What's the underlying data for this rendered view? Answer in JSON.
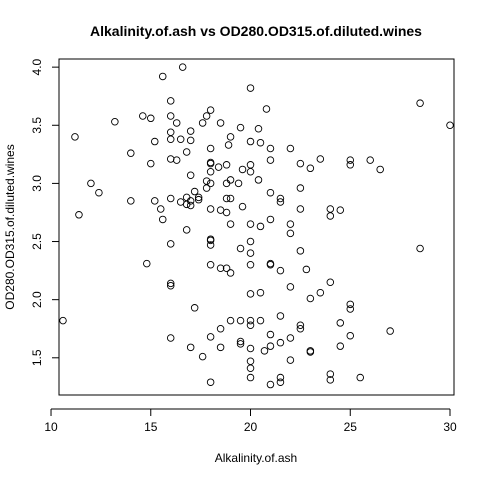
{
  "chart_data": {
    "type": "scatter",
    "title": "Alkalinity.of.ash vs OD280.OD315.of.diluted.wines",
    "xlabel": "Alkalinity.of.ash",
    "ylabel": "OD280.OD315.of.diluted.wines",
    "xlim": [
      10.4,
      30.2
    ],
    "ylim": [
      1.18,
      4.07
    ],
    "xticks": [
      10,
      15,
      20,
      25,
      30
    ],
    "yticks": [
      1.5,
      2.0,
      2.5,
      3.0,
      3.5,
      4.0
    ],
    "xtick_labels": [
      "10",
      "15",
      "20",
      "25",
      "30"
    ],
    "ytick_labels": [
      "1.5",
      "2.0",
      "2.5",
      "3.0",
      "3.5",
      "4.0"
    ],
    "grid": false,
    "points": [
      [
        10.6,
        1.82
      ],
      [
        11.2,
        3.4
      ],
      [
        11.4,
        2.73
      ],
      [
        12.0,
        3.0
      ],
      [
        12.4,
        2.92
      ],
      [
        13.2,
        3.53
      ],
      [
        14.0,
        3.26
      ],
      [
        14.0,
        2.85
      ],
      [
        14.6,
        3.58
      ],
      [
        14.8,
        2.31
      ],
      [
        15.0,
        3.56
      ],
      [
        15.0,
        3.17
      ],
      [
        15.2,
        3.36
      ],
      [
        15.2,
        2.85
      ],
      [
        15.5,
        2.78
      ],
      [
        15.6,
        3.92
      ],
      [
        15.6,
        2.69
      ],
      [
        16.0,
        3.71
      ],
      [
        16.0,
        3.58
      ],
      [
        16.0,
        3.44
      ],
      [
        16.0,
        3.38
      ],
      [
        16.0,
        3.21
      ],
      [
        16.0,
        2.87
      ],
      [
        16.0,
        2.48
      ],
      [
        16.0,
        2.14
      ],
      [
        16.0,
        2.12
      ],
      [
        16.0,
        1.67
      ],
      [
        16.3,
        3.52
      ],
      [
        16.3,
        3.2
      ],
      [
        16.5,
        3.38
      ],
      [
        16.5,
        2.84
      ],
      [
        16.6,
        4.0
      ],
      [
        16.8,
        3.27
      ],
      [
        16.8,
        2.82
      ],
      [
        16.8,
        2.88
      ],
      [
        17.0,
        3.45
      ],
      [
        17.0,
        3.37
      ],
      [
        17.0,
        3.07
      ],
      [
        17.0,
        2.85
      ],
      [
        17.0,
        2.81
      ],
      [
        16.8,
        2.6
      ],
      [
        17.0,
        1.59
      ],
      [
        17.2,
        2.93
      ],
      [
        17.2,
        1.93
      ],
      [
        17.4,
        2.88
      ],
      [
        17.4,
        2.86
      ],
      [
        17.6,
        3.52
      ],
      [
        17.6,
        1.51
      ],
      [
        17.8,
        3.02
      ],
      [
        17.8,
        2.96
      ],
      [
        17.8,
        3.58
      ],
      [
        18.0,
        3.63
      ],
      [
        18.0,
        3.3
      ],
      [
        18.0,
        3.18
      ],
      [
        18.0,
        3.17
      ],
      [
        18.0,
        3.1
      ],
      [
        18.0,
        3.0
      ],
      [
        18.0,
        2.78
      ],
      [
        18.0,
        2.52
      ],
      [
        18.0,
        2.51
      ],
      [
        18.0,
        2.47
      ],
      [
        18.0,
        2.3
      ],
      [
        18.0,
        1.68
      ],
      [
        18.0,
        1.29
      ],
      [
        18.4,
        3.14
      ],
      [
        18.5,
        3.52
      ],
      [
        18.5,
        2.77
      ],
      [
        18.5,
        2.27
      ],
      [
        18.5,
        1.75
      ],
      [
        18.5,
        1.59
      ],
      [
        18.8,
        3.16
      ],
      [
        18.8,
        3.0
      ],
      [
        18.8,
        2.87
      ],
      [
        18.8,
        2.75
      ],
      [
        18.8,
        2.27
      ],
      [
        18.9,
        3.33
      ],
      [
        19.0,
        3.4
      ],
      [
        19.0,
        3.03
      ],
      [
        19.0,
        2.87
      ],
      [
        19.0,
        2.65
      ],
      [
        19.0,
        2.23
      ],
      [
        19.0,
        1.82
      ],
      [
        19.4,
        3.0
      ],
      [
        19.5,
        3.48
      ],
      [
        19.5,
        2.44
      ],
      [
        19.5,
        1.82
      ],
      [
        19.5,
        1.64
      ],
      [
        19.5,
        1.62
      ],
      [
        19.6,
        3.12
      ],
      [
        19.6,
        2.8
      ],
      [
        20.0,
        3.82
      ],
      [
        20.0,
        3.36
      ],
      [
        20.0,
        3.16
      ],
      [
        20.0,
        3.1
      ],
      [
        20.0,
        2.65
      ],
      [
        20.0,
        2.5
      ],
      [
        20.0,
        2.4
      ],
      [
        20.0,
        2.3
      ],
      [
        20.0,
        2.05
      ],
      [
        20.0,
        1.82
      ],
      [
        20.0,
        1.78
      ],
      [
        20.0,
        1.58
      ],
      [
        20.0,
        1.47
      ],
      [
        20.0,
        1.41
      ],
      [
        20.0,
        1.33
      ],
      [
        20.4,
        3.47
      ],
      [
        20.4,
        3.03
      ],
      [
        20.5,
        3.35
      ],
      [
        20.5,
        2.63
      ],
      [
        20.5,
        2.06
      ],
      [
        20.5,
        1.82
      ],
      [
        20.7,
        1.56
      ],
      [
        20.8,
        3.64
      ],
      [
        21.0,
        3.3
      ],
      [
        21.0,
        3.2
      ],
      [
        21.0,
        2.92
      ],
      [
        21.0,
        2.69
      ],
      [
        21.0,
        2.31
      ],
      [
        21.0,
        2.3
      ],
      [
        21.0,
        1.7
      ],
      [
        21.0,
        1.6
      ],
      [
        21.0,
        1.27
      ],
      [
        21.5,
        2.87
      ],
      [
        21.5,
        2.84
      ],
      [
        21.5,
        2.25
      ],
      [
        21.5,
        1.86
      ],
      [
        21.5,
        1.63
      ],
      [
        21.5,
        1.33
      ],
      [
        21.5,
        1.29
      ],
      [
        22.0,
        3.3
      ],
      [
        22.0,
        2.65
      ],
      [
        22.0,
        2.57
      ],
      [
        22.0,
        2.11
      ],
      [
        22.0,
        1.67
      ],
      [
        22.0,
        1.48
      ],
      [
        22.5,
        3.17
      ],
      [
        22.5,
        2.96
      ],
      [
        22.5,
        2.78
      ],
      [
        22.5,
        2.42
      ],
      [
        22.5,
        1.78
      ],
      [
        22.5,
        1.75
      ],
      [
        22.8,
        2.26
      ],
      [
        23.0,
        3.13
      ],
      [
        23.0,
        2.01
      ],
      [
        23.0,
        1.56
      ],
      [
        23.0,
        1.55
      ],
      [
        23.5,
        3.21
      ],
      [
        23.5,
        2.06
      ],
      [
        24.0,
        2.78
      ],
      [
        24.0,
        2.72
      ],
      [
        24.0,
        2.15
      ],
      [
        24.0,
        1.36
      ],
      [
        24.0,
        1.31
      ],
      [
        24.5,
        2.77
      ],
      [
        24.5,
        1.8
      ],
      [
        24.5,
        1.6
      ],
      [
        25.0,
        3.2
      ],
      [
        25.0,
        3.16
      ],
      [
        25.0,
        1.96
      ],
      [
        25.0,
        1.92
      ],
      [
        25.0,
        1.69
      ],
      [
        25.5,
        1.33
      ],
      [
        26.0,
        3.2
      ],
      [
        26.5,
        3.12
      ],
      [
        27.0,
        1.73
      ],
      [
        28.5,
        3.69
      ],
      [
        28.5,
        2.44
      ],
      [
        30.0,
        3.5
      ]
    ]
  }
}
